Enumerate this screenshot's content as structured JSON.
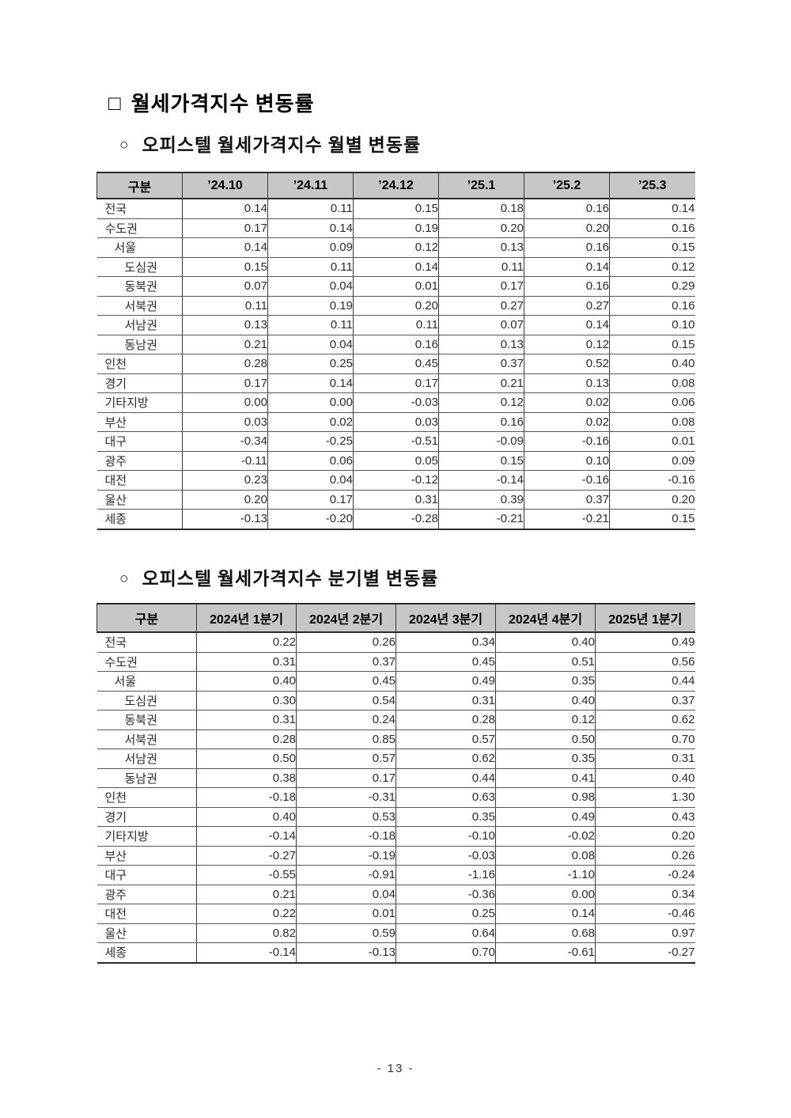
{
  "doc": {
    "title_marker": "□",
    "title": "월세가격지수 변동률",
    "page_number": "- 13 -"
  },
  "sections": [
    {
      "marker": "○",
      "heading": "오피스텔 월세가격지수 월별 변동률",
      "table": {
        "header": [
          "구분",
          "’24.10",
          "’24.11",
          "’24.12",
          "’25.1",
          "’25.2",
          "’25.3"
        ],
        "rows": [
          {
            "label": "전국",
            "indent": 0,
            "values": [
              "0.14",
              "0.11",
              "0.15",
              "0.18",
              "0.16",
              "0.14"
            ]
          },
          {
            "label": "수도권",
            "indent": 0,
            "values": [
              "0.17",
              "0.14",
              "0.19",
              "0.20",
              "0.20",
              "0.16"
            ]
          },
          {
            "label": "서울",
            "indent": 1,
            "values": [
              "0.14",
              "0.09",
              "0.12",
              "0.13",
              "0.16",
              "0.15"
            ]
          },
          {
            "label": "도심권",
            "indent": 2,
            "values": [
              "0.15",
              "0.11",
              "0.14",
              "0.11",
              "0.14",
              "0.12"
            ]
          },
          {
            "label": "동북권",
            "indent": 2,
            "values": [
              "0.07",
              "0.04",
              "0.01",
              "0.17",
              "0.16",
              "0.29"
            ]
          },
          {
            "label": "서북권",
            "indent": 2,
            "values": [
              "0.11",
              "0.19",
              "0.20",
              "0.27",
              "0.27",
              "0.16"
            ]
          },
          {
            "label": "서남권",
            "indent": 2,
            "values": [
              "0.13",
              "0.11",
              "0.11",
              "0.07",
              "0.14",
              "0.10"
            ]
          },
          {
            "label": "동남권",
            "indent": 2,
            "values": [
              "0.21",
              "0.04",
              "0.16",
              "0.13",
              "0.12",
              "0.15"
            ]
          },
          {
            "label": "인천",
            "indent": 0,
            "values": [
              "0.28",
              "0.25",
              "0.45",
              "0.37",
              "0.52",
              "0.40"
            ]
          },
          {
            "label": "경기",
            "indent": 0,
            "values": [
              "0.17",
              "0.14",
              "0.17",
              "0.21",
              "0.13",
              "0.08"
            ]
          },
          {
            "label": "기타지방",
            "indent": 0,
            "values": [
              "0.00",
              "0.00",
              "-0.03",
              "0.12",
              "0.02",
              "0.06"
            ]
          },
          {
            "label": "부산",
            "indent": 0,
            "values": [
              "0.03",
              "0.02",
              "0.03",
              "0.16",
              "0.02",
              "0.08"
            ]
          },
          {
            "label": "대구",
            "indent": 0,
            "values": [
              "-0.34",
              "-0.25",
              "-0.51",
              "-0.09",
              "-0.16",
              "0.01"
            ]
          },
          {
            "label": "광주",
            "indent": 0,
            "values": [
              "-0.11",
              "0.06",
              "0.05",
              "0.15",
              "0.10",
              "0.09"
            ]
          },
          {
            "label": "대전",
            "indent": 0,
            "values": [
              "0.23",
              "0.04",
              "-0.12",
              "-0.14",
              "-0.16",
              "-0.16"
            ]
          },
          {
            "label": "울산",
            "indent": 0,
            "values": [
              "0.20",
              "0.17",
              "0.31",
              "0.39",
              "0.37",
              "0.20"
            ]
          },
          {
            "label": "세종",
            "indent": 0,
            "values": [
              "-0.13",
              "-0.20",
              "-0.28",
              "-0.21",
              "-0.21",
              "0.15"
            ]
          }
        ]
      }
    },
    {
      "marker": "○",
      "heading": "오피스텔 월세가격지수 분기별 변동률",
      "table": {
        "header": [
          "구분",
          "2024년 1분기",
          "2024년 2분기",
          "2024년 3분기",
          "2024년 4분기",
          "2025년 1분기"
        ],
        "rows": [
          {
            "label": "전국",
            "indent": 0,
            "values": [
              "0.22",
              "0.26",
              "0.34",
              "0.40",
              "0.49"
            ]
          },
          {
            "label": "수도권",
            "indent": 0,
            "values": [
              "0.31",
              "0.37",
              "0.45",
              "0.51",
              "0.56"
            ]
          },
          {
            "label": "서울",
            "indent": 1,
            "values": [
              "0.40",
              "0.45",
              "0.49",
              "0.35",
              "0.44"
            ]
          },
          {
            "label": "도심권",
            "indent": 2,
            "values": [
              "0.30",
              "0.54",
              "0.31",
              "0.40",
              "0.37"
            ]
          },
          {
            "label": "동북권",
            "indent": 2,
            "values": [
              "0.31",
              "0.24",
              "0.28",
              "0.12",
              "0.62"
            ]
          },
          {
            "label": "서북권",
            "indent": 2,
            "values": [
              "0.28",
              "0.85",
              "0.57",
              "0.50",
              "0.70"
            ]
          },
          {
            "label": "서남권",
            "indent": 2,
            "values": [
              "0.50",
              "0.57",
              "0.62",
              "0.35",
              "0.31"
            ]
          },
          {
            "label": "동남권",
            "indent": 2,
            "values": [
              "0.38",
              "0.17",
              "0.44",
              "0.41",
              "0.40"
            ]
          },
          {
            "label": "인천",
            "indent": 0,
            "values": [
              "-0.18",
              "-0.31",
              "0.63",
              "0.98",
              "1.30"
            ]
          },
          {
            "label": "경기",
            "indent": 0,
            "values": [
              "0.40",
              "0.53",
              "0.35",
              "0.49",
              "0.43"
            ]
          },
          {
            "label": "기타지방",
            "indent": 0,
            "values": [
              "-0.14",
              "-0.18",
              "-0.10",
              "-0.02",
              "0.20"
            ]
          },
          {
            "label": "부산",
            "indent": 0,
            "values": [
              "-0.27",
              "-0.19",
              "-0.03",
              "0.08",
              "0.26"
            ]
          },
          {
            "label": "대구",
            "indent": 0,
            "values": [
              "-0.55",
              "-0.91",
              "-1.16",
              "-1.10",
              "-0.24"
            ]
          },
          {
            "label": "광주",
            "indent": 0,
            "values": [
              "0.21",
              "0.04",
              "-0.36",
              "0.00",
              "0.34"
            ]
          },
          {
            "label": "대전",
            "indent": 0,
            "values": [
              "0.22",
              "0.01",
              "0.25",
              "0.14",
              "-0.46"
            ]
          },
          {
            "label": "울산",
            "indent": 0,
            "values": [
              "0.82",
              "0.59",
              "0.64",
              "0.68",
              "0.97"
            ]
          },
          {
            "label": "세종",
            "indent": 0,
            "values": [
              "-0.14",
              "-0.13",
              "0.70",
              "-0.61",
              "-0.27"
            ]
          }
        ]
      }
    }
  ]
}
